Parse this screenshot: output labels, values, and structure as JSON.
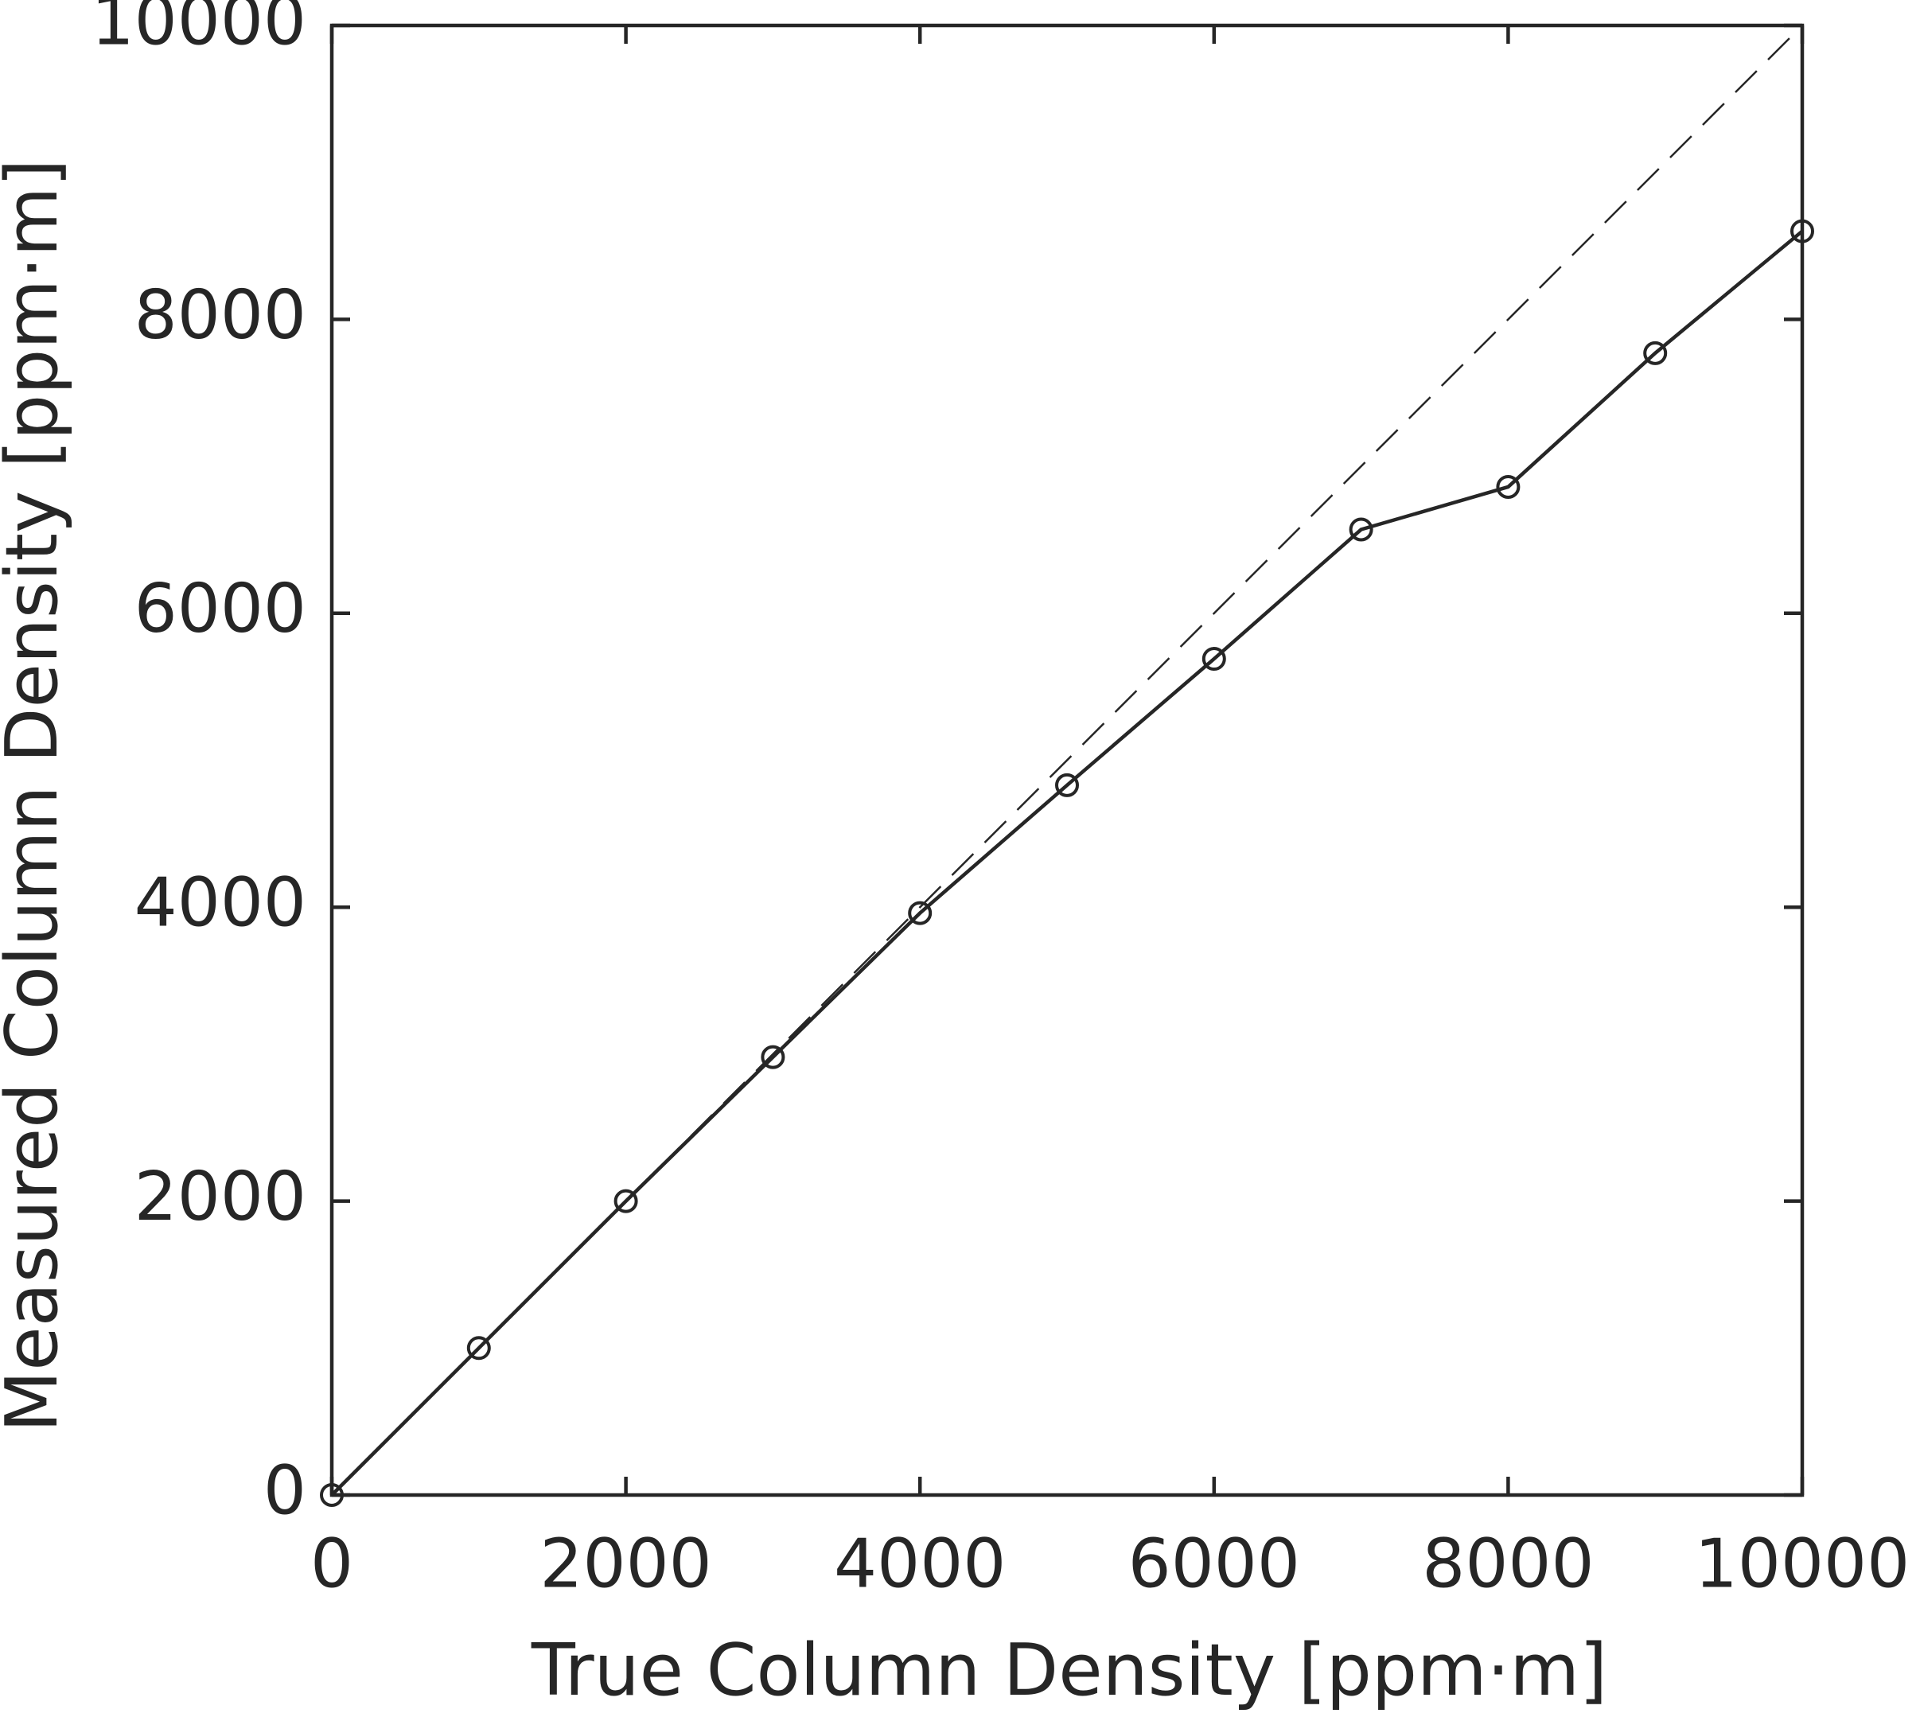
{
  "chart_data": {
    "type": "line",
    "xlabel": "True Column Density [ppm·m]",
    "ylabel": "Measured Column Density [ppm·m]",
    "x": [
      0,
      1000,
      2000,
      3000,
      4000,
      5000,
      6000,
      7000,
      8000,
      9000,
      10000
    ],
    "series": [
      {
        "color": "#262626",
        "marker": "circle",
        "dashed": false,
        "values": [
          0,
          1000,
          2000,
          2980,
          3960,
          4830,
          5690,
          6570,
          6860,
          7770,
          8600
        ]
      },
      {
        "color": "#262626",
        "marker": "none",
        "dashed": true,
        "x": [
          0,
          10000
        ],
        "values": [
          0,
          10000
        ]
      }
    ],
    "xlim": [
      0,
      10000
    ],
    "ylim": [
      0,
      10000
    ],
    "xticks": [
      0,
      2000,
      4000,
      6000,
      8000,
      10000
    ],
    "yticks": [
      0,
      2000,
      4000,
      6000,
      8000,
      10000
    ],
    "grid": false
  }
}
